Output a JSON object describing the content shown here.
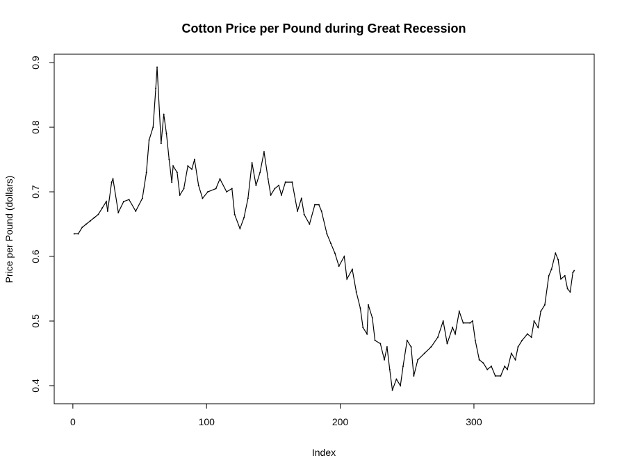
{
  "chart_data": {
    "type": "line",
    "title": "Cotton Price per Pound during Great Recession",
    "x_label": "Index",
    "y_label": "Price per Pound (dollars)",
    "color": "#000000",
    "x": [
      1,
      4,
      7,
      10,
      13,
      16,
      19,
      22,
      25,
      26,
      29,
      30,
      34,
      38,
      42,
      47,
      52,
      55,
      57,
      60,
      62,
      63,
      66,
      68,
      70,
      72,
      74,
      75,
      78,
      80,
      83,
      86,
      89,
      91,
      94,
      97,
      101,
      107,
      110,
      115,
      119,
      121,
      125,
      128,
      131,
      134,
      137,
      140,
      143,
      146,
      148,
      151,
      154,
      156,
      159,
      164,
      168,
      171,
      173,
      177,
      181,
      184,
      186,
      190,
      193,
      196,
      199,
      203,
      205,
      209,
      212,
      215,
      217,
      220,
      221,
      224,
      226,
      230,
      233,
      235,
      237,
      239,
      242,
      245,
      247,
      250,
      253,
      255,
      258,
      263,
      268,
      273,
      277,
      280,
      284,
      286,
      289,
      292,
      297,
      299,
      301,
      304,
      307,
      310,
      313,
      316,
      320,
      323,
      325,
      328,
      331,
      333,
      336,
      340,
      343,
      345,
      348,
      350,
      353,
      356,
      358,
      361,
      363,
      365,
      368,
      370,
      372,
      374,
      375
    ],
    "values": [
      0.635,
      0.635,
      0.645,
      0.65,
      0.655,
      0.66,
      0.665,
      0.675,
      0.685,
      0.67,
      0.715,
      0.72,
      0.668,
      0.685,
      0.688,
      0.67,
      0.69,
      0.73,
      0.78,
      0.8,
      0.86,
      0.893,
      0.775,
      0.82,
      0.79,
      0.75,
      0.715,
      0.74,
      0.73,
      0.695,
      0.705,
      0.74,
      0.735,
      0.75,
      0.71,
      0.69,
      0.7,
      0.705,
      0.72,
      0.7,
      0.705,
      0.665,
      0.643,
      0.66,
      0.69,
      0.745,
      0.71,
      0.73,
      0.762,
      0.72,
      0.695,
      0.705,
      0.71,
      0.695,
      0.715,
      0.715,
      0.67,
      0.69,
      0.665,
      0.65,
      0.68,
      0.68,
      0.67,
      0.635,
      0.62,
      0.605,
      0.585,
      0.6,
      0.565,
      0.58,
      0.545,
      0.52,
      0.49,
      0.48,
      0.525,
      0.505,
      0.47,
      0.465,
      0.44,
      0.46,
      0.425,
      0.393,
      0.41,
      0.4,
      0.43,
      0.47,
      0.46,
      0.415,
      0.44,
      0.45,
      0.46,
      0.475,
      0.5,
      0.465,
      0.49,
      0.48,
      0.515,
      0.497,
      0.497,
      0.5,
      0.47,
      0.44,
      0.435,
      0.425,
      0.43,
      0.415,
      0.415,
      0.43,
      0.425,
      0.45,
      0.44,
      0.46,
      0.47,
      0.48,
      0.475,
      0.5,
      0.49,
      0.515,
      0.525,
      0.57,
      0.58,
      0.605,
      0.595,
      0.565,
      0.57,
      0.55,
      0.545,
      0.575,
      0.578
    ],
    "xlim": [
      -13.96,
      389.96
    ],
    "ylim": [
      0.372,
      0.913
    ],
    "xticks": [
      0,
      100,
      200,
      300
    ],
    "yticks": [
      0.4,
      0.5,
      0.6,
      0.7,
      0.8,
      0.9
    ]
  }
}
